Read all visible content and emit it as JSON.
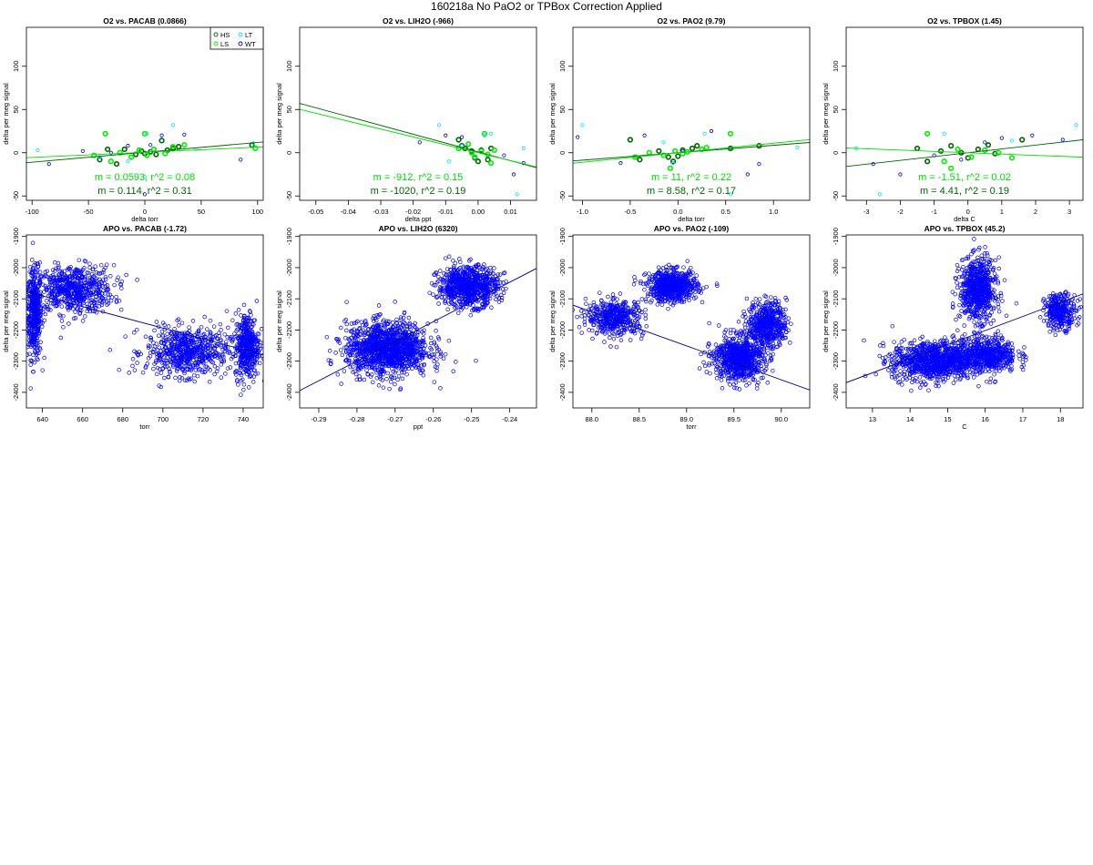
{
  "page": {
    "title": "160218a   No PaO2 or TPBox Correction Applied"
  },
  "colors": {
    "HS": "#006400",
    "LS": "#00ee00",
    "LT": "#00e5ee",
    "WT": "#0000cd",
    "fit_green_dark": "#006400",
    "fit_green_light": "#00dd00",
    "apo": "#0000ff"
  },
  "legend": [
    "HS",
    "LS",
    "LT",
    "WT"
  ],
  "chart_data": [
    {
      "type": "scatter",
      "title": "O2 vs. PACAB (0.0866)",
      "xlabel": "delta torr",
      "ylabel": "delta per meg signal",
      "xlim": [
        -105,
        105
      ],
      "ylim": [
        -55,
        145
      ],
      "xticks": [
        -100,
        -50,
        0,
        50,
        100
      ],
      "yticks": [
        -50,
        0,
        50,
        100
      ],
      "legend": "top-right",
      "series": [
        {
          "group": "HS",
          "x": [
            -40,
            -33,
            -25,
            -18,
            -8,
            -3,
            0,
            5,
            10,
            15,
            20,
            25,
            30,
            95
          ],
          "y": [
            -8,
            4,
            -13,
            4,
            -2,
            2,
            -1,
            1,
            -2,
            14,
            3,
            5,
            7,
            9
          ]
        },
        {
          "group": "LS",
          "x": [
            -45,
            -35,
            -30,
            -22,
            -12,
            -5,
            0,
            2,
            8,
            18,
            25,
            35,
            98
          ],
          "y": [
            -3,
            22,
            -10,
            0,
            -5,
            3,
            22,
            -3,
            4,
            -1,
            7,
            9,
            5
          ]
        },
        {
          "group": "LT",
          "x": [
            -95,
            -40,
            -15,
            0,
            2,
            25,
            45,
            96
          ],
          "y": [
            3,
            -5,
            -10,
            -28,
            22,
            32,
            4,
            11
          ]
        },
        {
          "group": "WT",
          "x": [
            -85,
            -55,
            -30,
            -15,
            0,
            5,
            15,
            35,
            85
          ],
          "y": [
            -13,
            2,
            0,
            8,
            -48,
            9,
            20,
            21,
            -8
          ]
        }
      ],
      "fits": [
        {
          "color": "dark",
          "m": 0.114,
          "b": 0.5
        },
        {
          "color": "light",
          "m": 0.0593,
          "b": 0.5
        }
      ],
      "annotations": [
        "m = 0.0593, r^2 = 0.08",
        "m = 0.114, r^2 = 0.31"
      ]
    },
    {
      "type": "scatter",
      "title": "O2 vs. LIH2O (-966)",
      "xlabel": "delta ppt",
      "ylabel": "delta per meg signal",
      "xlim": [
        -0.055,
        0.018
      ],
      "ylim": [
        -55,
        145
      ],
      "xticks": [
        -0.05,
        -0.04,
        -0.03,
        -0.02,
        -0.01,
        0.0,
        0.01
      ],
      "yticks": [
        -50,
        0,
        50,
        100
      ],
      "legend": "none",
      "series": [
        {
          "group": "HS",
          "x": [
            -0.006,
            -0.004,
            -0.002,
            -0.001,
            0.0,
            0.001,
            0.003,
            0.004,
            -0.005
          ],
          "y": [
            15,
            5,
            2,
            -6,
            -10,
            3,
            -8,
            5,
            8
          ]
        },
        {
          "group": "LS",
          "x": [
            -0.006,
            -0.003,
            -0.001,
            0.001,
            0.002,
            0.003,
            0.004,
            0.005,
            -0.002
          ],
          "y": [
            5,
            10,
            -5,
            2,
            22,
            -2,
            -12,
            3,
            0
          ]
        },
        {
          "group": "LT",
          "x": [
            -0.012,
            -0.009,
            -0.005,
            0.002,
            0.004,
            0.012,
            0.014
          ],
          "y": [
            32,
            -10,
            8,
            20,
            22,
            -48,
            5
          ]
        },
        {
          "group": "WT",
          "x": [
            -0.018,
            -0.01,
            -0.005,
            0.008,
            0.011,
            0.014
          ],
          "y": [
            12,
            20,
            18,
            -3,
            -25,
            -12
          ]
        }
      ],
      "fits": [
        {
          "color": "dark",
          "m": -1020,
          "b": 1
        },
        {
          "color": "light",
          "m": -912,
          "b": 0
        }
      ],
      "annotations": [
        "m = -912, r^2 = 0.15",
        "m = -1020, r^2 = 0.19"
      ]
    },
    {
      "type": "scatter",
      "title": "O2 vs. PAO2 (9.79)",
      "xlabel": "delta torr",
      "ylabel": "delta per meg signal",
      "xlim": [
        -1.1,
        1.38
      ],
      "ylim": [
        -55,
        145
      ],
      "xticks": [
        -1.0,
        -0.5,
        0.0,
        0.5,
        1.0
      ],
      "yticks": [
        -50,
        0,
        50,
        100
      ],
      "legend": "none",
      "series": [
        {
          "group": "HS",
          "x": [
            -0.5,
            -0.4,
            -0.2,
            -0.1,
            -0.05,
            0.0,
            0.05,
            0.15,
            0.2,
            0.55,
            0.85
          ],
          "y": [
            15,
            -8,
            2,
            -5,
            -10,
            -4,
            3,
            5,
            8,
            5,
            8
          ]
        },
        {
          "group": "LS",
          "x": [
            -0.45,
            -0.3,
            -0.15,
            -0.08,
            -0.03,
            0.05,
            0.1,
            0.25,
            0.3,
            0.55
          ],
          "y": [
            -5,
            0,
            -3,
            -18,
            2,
            -1,
            1,
            4,
            6,
            22
          ]
        },
        {
          "group": "LT",
          "x": [
            -1.0,
            -0.15,
            -0.05,
            0.28,
            0.55,
            1.25
          ],
          "y": [
            32,
            12,
            -12,
            22,
            -48,
            6
          ]
        },
        {
          "group": "WT",
          "x": [
            -1.05,
            -0.6,
            -0.35,
            0.05,
            0.35,
            0.73,
            0.85
          ],
          "y": [
            18,
            -12,
            20,
            2,
            25,
            -25,
            -13
          ]
        }
      ],
      "fits": [
        {
          "color": "dark",
          "m": 8.58,
          "b": 0
        },
        {
          "color": "light",
          "m": 11,
          "b": 0
        }
      ],
      "annotations": [
        "m = 11, r^2 = 0.22",
        "m = 8.58, r^2 = 0.17"
      ]
    },
    {
      "type": "scatter",
      "title": "O2 vs. TPBOX (1.45)",
      "xlabel": "delta C",
      "ylabel": "delta per meg signal",
      "xlim": [
        -3.6,
        3.4
      ],
      "ylim": [
        -55,
        145
      ],
      "xticks": [
        -3,
        -2,
        -1,
        0,
        1,
        2,
        3
      ],
      "yticks": [
        -50,
        0,
        50,
        100
      ],
      "legend": "none",
      "series": [
        {
          "group": "HS",
          "x": [
            -1.5,
            -1.2,
            -0.8,
            -0.5,
            -0.2,
            0.0,
            0.3,
            0.6,
            0.8,
            1.6
          ],
          "y": [
            5,
            -10,
            2,
            8,
            0,
            -6,
            4,
            9,
            -1,
            15
          ]
        },
        {
          "group": "LS",
          "x": [
            -1.2,
            -0.7,
            -0.3,
            0.1,
            0.5,
            0.9,
            1.3,
            -0.5
          ],
          "y": [
            22,
            -10,
            4,
            -5,
            3,
            0,
            -6,
            -18
          ]
        },
        {
          "group": "LT",
          "x": [
            -3.3,
            -2.6,
            -0.7,
            1.3,
            3.2
          ],
          "y": [
            5,
            -48,
            22,
            14,
            32
          ]
        },
        {
          "group": "WT",
          "x": [
            -2.0,
            -1.0,
            -0.2,
            0.5,
            1.0,
            1.9,
            2.8,
            -2.8
          ],
          "y": [
            -25,
            -3,
            -8,
            12,
            17,
            20,
            15,
            -13
          ]
        }
      ],
      "fits": [
        {
          "color": "dark",
          "m": 4.41,
          "b": 0
        },
        {
          "color": "light",
          "m": -1.51,
          "b": 0
        }
      ],
      "annotations": [
        "m = -1.51, r^2 = 0.02",
        "m = 4.41, r^2 = 0.19"
      ]
    },
    {
      "type": "scatter",
      "title": "APO vs. PACAB (-1.72)",
      "xlabel": "torr",
      "ylabel": "delta per meg signal",
      "xlim": [
        632,
        750
      ],
      "ylim": [
        -2450,
        -1895
      ],
      "xticks": [
        640,
        660,
        680,
        700,
        720,
        740
      ],
      "yticks": [
        -2400,
        -2300,
        -2200,
        -2100,
        -2000,
        -1900
      ],
      "clusters": [
        {
          "x_center": 636,
          "x_spread": 3,
          "y_center": -2150,
          "y_spread": 100,
          "count": 420
        },
        {
          "x_center": 655,
          "x_spread": 17,
          "y_center": -2070,
          "y_spread": 55,
          "count": 620
        },
        {
          "x_center": 712,
          "x_spread": 17,
          "y_center": -2270,
          "y_spread": 55,
          "count": 620
        },
        {
          "x_center": 742,
          "x_spread": 5,
          "y_center": -2250,
          "y_spread": 75,
          "count": 420
        }
      ],
      "fits": [
        {
          "color": "apo",
          "m": -1.72,
          "b": -990
        }
      ]
    },
    {
      "type": "scatter",
      "title": "APO vs. LIH2O (6320)",
      "xlabel": "ppt",
      "ylabel": "delta per meg signal",
      "xlim": [
        -0.295,
        -0.233
      ],
      "ylim": [
        -2450,
        -1895
      ],
      "xticks": [
        -0.29,
        -0.28,
        -0.27,
        -0.26,
        -0.25,
        -0.24
      ],
      "yticks": [
        -2400,
        -2300,
        -2200,
        -2100,
        -2000,
        -1900
      ],
      "clusters": [
        {
          "x_center": -0.272,
          "x_spread": 0.009,
          "y_center": -2260,
          "y_spread": 60,
          "count": 1300
        },
        {
          "x_center": -0.251,
          "x_spread": 0.0065,
          "y_center": -2060,
          "y_spread": 45,
          "count": 800
        }
      ],
      "fits": [
        {
          "color": "apo",
          "m": 6320,
          "b": -530
        }
      ]
    },
    {
      "type": "scatter",
      "title": "APO vs. PAO2 (-109)",
      "xlabel": "torr",
      "ylabel": "delta per meg signal",
      "xlim": [
        87.8,
        90.3
      ],
      "ylim": [
        -2450,
        -1895
      ],
      "xticks": [
        88.0,
        88.5,
        89.0,
        89.5,
        90.0
      ],
      "yticks": [
        -2400,
        -2300,
        -2200,
        -2100,
        -2000,
        -1900
      ],
      "clusters": [
        {
          "x_center": 88.25,
          "x_spread": 0.25,
          "y_center": -2160,
          "y_spread": 40,
          "count": 450
        },
        {
          "x_center": 88.85,
          "x_spread": 0.22,
          "y_center": -2060,
          "y_spread": 35,
          "count": 650
        },
        {
          "x_center": 89.55,
          "x_spread": 0.22,
          "y_center": -2290,
          "y_spread": 50,
          "count": 800
        },
        {
          "x_center": 89.85,
          "x_spread": 0.17,
          "y_center": -2180,
          "y_spread": 50,
          "count": 500
        }
      ],
      "fits": [
        {
          "color": "apo",
          "m": -109,
          "b": 7450
        }
      ]
    },
    {
      "type": "scatter",
      "title": "APO vs. TPBOX (45.2)",
      "xlabel": "C",
      "ylabel": "delta per meg signal",
      "xlim": [
        12.3,
        18.6
      ],
      "ylim": [
        -2450,
        -1895
      ],
      "xticks": [
        13,
        14,
        15,
        16,
        17,
        18
      ],
      "yticks": [
        -2400,
        -2300,
        -2200,
        -2100,
        -2000,
        -1900
      ],
      "clusters": [
        {
          "x_center": 14.6,
          "x_spread": 0.9,
          "y_center": -2300,
          "y_spread": 45,
          "count": 900
        },
        {
          "x_center": 16.0,
          "x_spread": 0.7,
          "y_center": -2280,
          "y_spread": 40,
          "count": 600
        },
        {
          "x_center": 15.8,
          "x_spread": 0.4,
          "y_center": -2070,
          "y_spread": 70,
          "count": 700
        },
        {
          "x_center": 18.0,
          "x_spread": 0.35,
          "y_center": -2140,
          "y_spread": 40,
          "count": 300
        }
      ],
      "fits": [
        {
          "color": "apo",
          "m": 45.2,
          "b": -2925
        }
      ]
    }
  ]
}
